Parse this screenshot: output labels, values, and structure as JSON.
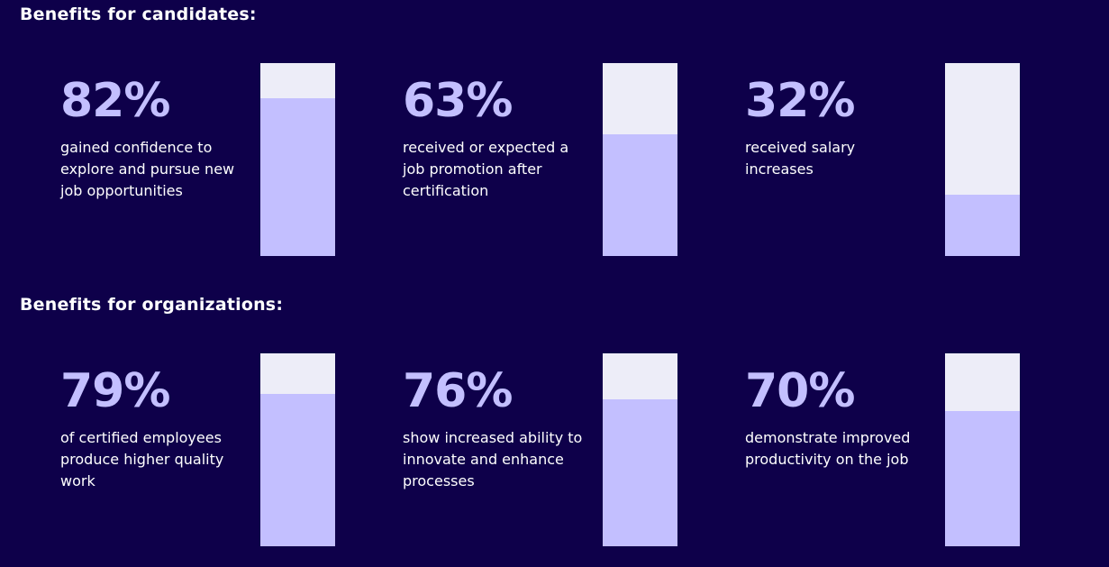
{
  "candidates": {
    "title": "Benefits for candidates:",
    "stats": [
      {
        "value": "82%",
        "percent": 82,
        "text": "gained confidence to explore and pursue new job opportunities"
      },
      {
        "value": "63%",
        "percent": 63,
        "text": "received or expected a job promotion after certification"
      },
      {
        "value": "32%",
        "percent": 32,
        "text": "received salary increases"
      }
    ]
  },
  "organizations": {
    "title": "Benefits for organizations:",
    "stats": [
      {
        "value": "79%",
        "percent": 79,
        "text": "of certified employees produce higher quality work"
      },
      {
        "value": "76%",
        "percent": 76,
        "text": "show increased ability to innovate and enhance processes"
      },
      {
        "value": "70%",
        "percent": 70,
        "text": "demonstrate improved productivity on the job"
      }
    ]
  },
  "chart_data": [
    {
      "type": "bar",
      "title": "Benefits for candidates:",
      "categories": [
        "gained confidence to explore and pursue new job opportunities",
        "received or expected a job promotion after certification",
        "received salary increases"
      ],
      "values": [
        82,
        63,
        32
      ],
      "ylim": [
        0,
        100
      ]
    },
    {
      "type": "bar",
      "title": "Benefits for organizations:",
      "categories": [
        "of certified employees produce higher quality work",
        "show increased ability to innovate and enhance processes",
        "demonstrate improved productivity on the job"
      ],
      "values": [
        79,
        76,
        70
      ],
      "ylim": [
        0,
        100
      ]
    }
  ],
  "colors": {
    "background": "#0e004a",
    "accent": "#c3bfff",
    "bar_track": "#ededf8",
    "text": "#ffffff"
  }
}
